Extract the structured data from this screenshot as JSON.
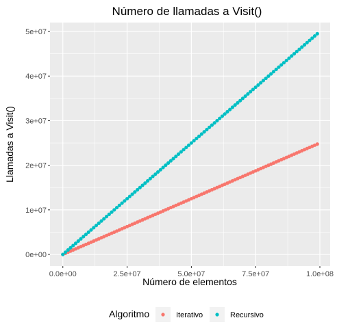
{
  "chart_data": {
    "type": "scatter",
    "title": "Número de llamadas a Visit()",
    "xlabel": "Número de elementos",
    "ylabel": "Llamadas a Visit()",
    "xlim": [
      -5000000,
      104000000
    ],
    "ylim": [
      -2600000,
      52000000
    ],
    "x_ticks": [
      0,
      25000000,
      50000000,
      75000000,
      100000000
    ],
    "x_tick_labels": [
      "0.0e+00",
      "2.5e+07",
      "5.0e+07",
      "7.5e+07",
      "1.0e+08"
    ],
    "y_ticks": [
      0,
      10000000,
      20000000,
      30000000,
      40000000,
      50000000
    ],
    "y_tick_labels": [
      "0e+00",
      "1e+07",
      "2e+07",
      "3e+07",
      "4e+07",
      "5e+07"
    ],
    "grid": true,
    "legend": {
      "title": "Algoritmo",
      "position": "bottom"
    },
    "x_range": [
      0,
      99000000
    ],
    "n_points": 100,
    "series": [
      {
        "name": "Iterativo",
        "color": "#F8766D",
        "values": [
          0,
          24750000
        ]
      },
      {
        "name": "Recursivo",
        "color": "#00BFC4",
        "values": [
          0,
          49500000
        ]
      }
    ]
  }
}
